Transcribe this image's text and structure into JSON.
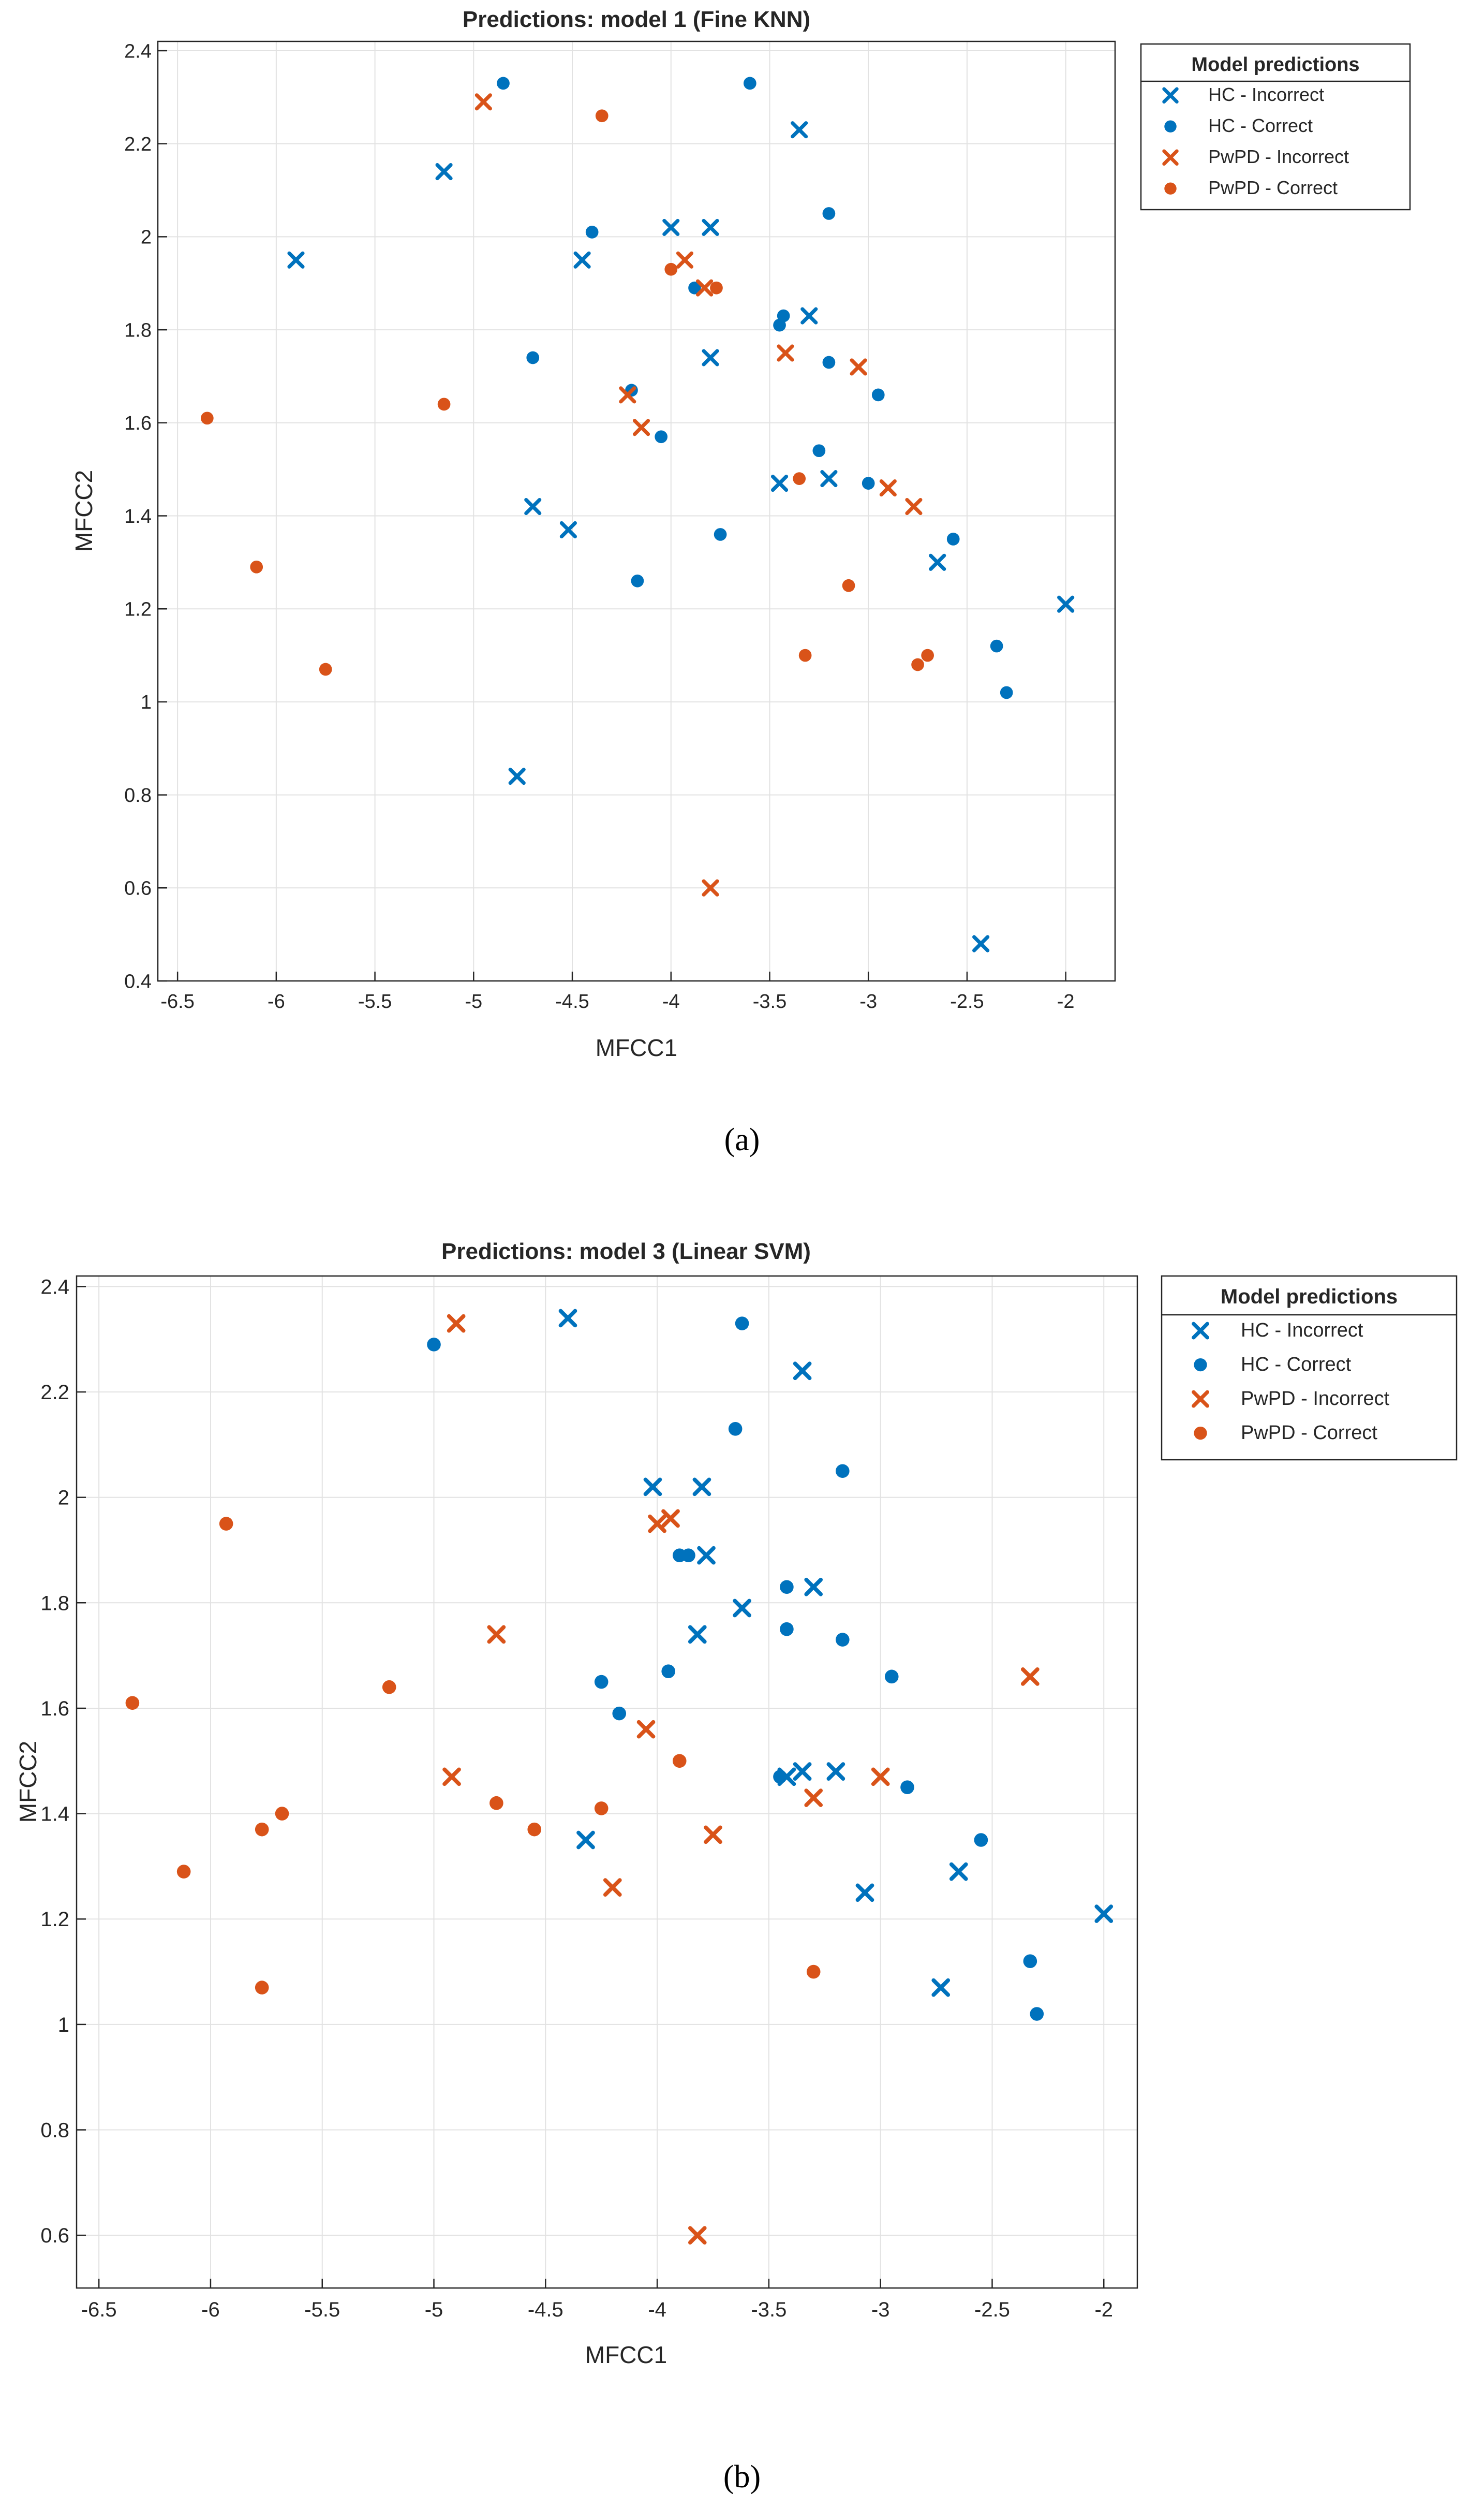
{
  "colors": {
    "hc": "#0072BD",
    "pwpd": "#D95319",
    "grid": "#e2e2e2",
    "axis": "#262626",
    "text": "#262626"
  },
  "chart_data": [
    {
      "type": "scatter",
      "title": "Predictions: model 1 (Fine KNN)",
      "xlabel": "MFCC1",
      "ylabel": "MFCC2",
      "caption": "(a)",
      "xlim": [
        -6.6,
        -1.75
      ],
      "ylim": [
        0.4,
        2.42
      ],
      "xticks": [
        -6.5,
        -6,
        -5.5,
        -5,
        -4.5,
        -4,
        -3.5,
        -3,
        -2.5,
        -2
      ],
      "xtick_labels": [
        "-6.5",
        "-6",
        "-5.5",
        "-5",
        "-4.5",
        "-4",
        "-3.5",
        "-3",
        "-2.5",
        "-2"
      ],
      "yticks": [
        0.4,
        0.6,
        0.8,
        1,
        1.2,
        1.4,
        1.6,
        1.8,
        2,
        2.2,
        2.4
      ],
      "ytick_labels": [
        "0.4",
        "0.6",
        "0.8",
        "1",
        "1.2",
        "1.4",
        "1.6",
        "1.8",
        "2",
        "2.2",
        "2.4"
      ],
      "grid": true,
      "legend": {
        "title": "Model predictions",
        "placement": "outside-top-right",
        "entries": [
          "HC - Incorrect",
          "HC - Correct",
          "PwPD - Incorrect",
          "PwPD - Correct"
        ]
      },
      "series": [
        {
          "name": "HC - Incorrect",
          "marker": "x",
          "color": "#0072BD",
          "points": [
            [
              -5.9,
              1.95
            ],
            [
              -5.15,
              2.14
            ],
            [
              -4.45,
              1.95
            ],
            [
              -4.0,
              2.02
            ],
            [
              -3.8,
              2.02
            ],
            [
              -3.35,
              2.23
            ],
            [
              -3.8,
              1.74
            ],
            [
              -3.3,
              1.83
            ],
            [
              -3.45,
              1.47
            ],
            [
              -3.2,
              1.48
            ],
            [
              -4.7,
              1.42
            ],
            [
              -4.52,
              1.37
            ],
            [
              -2.65,
              1.3
            ],
            [
              -2.0,
              1.21
            ],
            [
              -4.78,
              0.84
            ],
            [
              -2.43,
              0.48
            ]
          ]
        },
        {
          "name": "HC - Correct",
          "marker": "dot",
          "color": "#0072BD",
          "points": [
            [
              -4.85,
              2.33
            ],
            [
              -3.6,
              2.33
            ],
            [
              -4.4,
              2.01
            ],
            [
              -3.2,
              2.05
            ],
            [
              -3.88,
              1.89
            ],
            [
              -3.43,
              1.83
            ],
            [
              -3.45,
              1.81
            ],
            [
              -4.7,
              1.74
            ],
            [
              -3.2,
              1.73
            ],
            [
              -4.2,
              1.67
            ],
            [
              -2.95,
              1.66
            ],
            [
              -4.05,
              1.57
            ],
            [
              -3.25,
              1.54
            ],
            [
              -3.0,
              1.47
            ],
            [
              -2.57,
              1.35
            ],
            [
              -3.75,
              1.36
            ],
            [
              -4.17,
              1.26
            ],
            [
              -2.35,
              1.12
            ],
            [
              -2.3,
              1.02
            ]
          ]
        },
        {
          "name": "PwPD - Incorrect",
          "marker": "x",
          "color": "#D95319",
          "points": [
            [
              -4.95,
              2.29
            ],
            [
              -3.93,
              1.95
            ],
            [
              -3.83,
              1.89
            ],
            [
              -3.42,
              1.75
            ],
            [
              -3.05,
              1.72
            ],
            [
              -4.22,
              1.66
            ],
            [
              -4.15,
              1.59
            ],
            [
              -2.9,
              1.46
            ],
            [
              -2.77,
              1.42
            ],
            [
              -3.8,
              0.6
            ]
          ]
        },
        {
          "name": "PwPD - Correct",
          "marker": "dot",
          "color": "#D95319",
          "points": [
            [
              -4.35,
              2.26
            ],
            [
              -4.0,
              1.93
            ],
            [
              -3.77,
              1.89
            ],
            [
              -6.35,
              1.61
            ],
            [
              -5.15,
              1.64
            ],
            [
              -3.35,
              1.48
            ],
            [
              -6.1,
              1.29
            ],
            [
              -3.1,
              1.25
            ],
            [
              -5.75,
              1.07
            ],
            [
              -3.32,
              1.1
            ],
            [
              -2.7,
              1.1
            ],
            [
              -2.75,
              1.08
            ]
          ]
        }
      ]
    },
    {
      "type": "scatter",
      "title": "Predictions: model 3 (Linear SVM)",
      "xlabel": "MFCC1",
      "ylabel": "MFCC2",
      "caption": "(b)",
      "xlim": [
        -6.6,
        -1.85
      ],
      "ylim": [
        0.5,
        2.42
      ],
      "xticks": [
        -6.5,
        -6,
        -5.5,
        -5,
        -4.5,
        -4,
        -3.5,
        -3,
        -2.5,
        -2
      ],
      "xtick_labels": [
        "-6.5",
        "-6",
        "-5.5",
        "-5",
        "-4.5",
        "-4",
        "-3.5",
        "-3",
        "-2.5",
        "-2"
      ],
      "yticks": [
        0.6,
        0.8,
        1,
        1.2,
        1.4,
        1.6,
        1.8,
        2,
        2.2,
        2.4
      ],
      "ytick_labels": [
        "0.6",
        "0.8",
        "1",
        "1.2",
        "1.4",
        "1.6",
        "1.8",
        "2",
        "2.2",
        "2.4"
      ],
      "grid": true,
      "legend": {
        "title": "Model predictions",
        "placement": "outside-top-right",
        "entries": [
          "HC - Incorrect",
          "HC - Correct",
          "PwPD - Incorrect",
          "PwPD - Correct"
        ]
      },
      "series": [
        {
          "name": "HC - Incorrect",
          "marker": "x",
          "color": "#0072BD",
          "points": [
            [
              -4.4,
              2.34
            ],
            [
              -3.35,
              2.24
            ],
            [
              -4.02,
              2.02
            ],
            [
              -3.8,
              2.02
            ],
            [
              -3.78,
              1.89
            ],
            [
              -3.3,
              1.83
            ],
            [
              -3.62,
              1.79
            ],
            [
              -3.82,
              1.74
            ],
            [
              -3.42,
              1.47
            ],
            [
              -3.35,
              1.48
            ],
            [
              -3.2,
              1.48
            ],
            [
              -4.32,
              1.35
            ],
            [
              -3.07,
              1.25
            ],
            [
              -2.65,
              1.29
            ],
            [
              -2.0,
              1.21
            ],
            [
              -2.73,
              1.07
            ]
          ]
        },
        {
          "name": "HC - Correct",
          "marker": "dot",
          "color": "#0072BD",
          "points": [
            [
              -5.0,
              2.29
            ],
            [
              -3.62,
              2.33
            ],
            [
              -3.65,
              2.13
            ],
            [
              -3.17,
              2.05
            ],
            [
              -3.9,
              1.89
            ],
            [
              -3.86,
              1.89
            ],
            [
              -3.42,
              1.83
            ],
            [
              -3.42,
              1.75
            ],
            [
              -3.17,
              1.73
            ],
            [
              -3.95,
              1.67
            ],
            [
              -2.95,
              1.66
            ],
            [
              -4.25,
              1.65
            ],
            [
              -4.17,
              1.59
            ],
            [
              -3.45,
              1.47
            ],
            [
              -2.88,
              1.45
            ],
            [
              -2.55,
              1.35
            ],
            [
              -2.33,
              1.12
            ],
            [
              -2.3,
              1.02
            ]
          ]
        },
        {
          "name": "PwPD - Incorrect",
          "marker": "x",
          "color": "#D95319",
          "points": [
            [
              -4.9,
              2.33
            ],
            [
              -4.0,
              1.95
            ],
            [
              -3.94,
              1.96
            ],
            [
              -4.72,
              1.74
            ],
            [
              -2.33,
              1.66
            ],
            [
              -4.05,
              1.56
            ],
            [
              -4.92,
              1.47
            ],
            [
              -3.0,
              1.47
            ],
            [
              -3.75,
              1.36
            ],
            [
              -3.3,
              1.43
            ],
            [
              -4.2,
              1.26
            ],
            [
              -3.82,
              0.6
            ]
          ]
        },
        {
          "name": "PwPD - Correct",
          "marker": "dot",
          "color": "#D95319",
          "points": [
            [
              -5.93,
              1.95
            ],
            [
              -6.35,
              1.61
            ],
            [
              -5.2,
              1.64
            ],
            [
              -3.9,
              1.5
            ],
            [
              -5.68,
              1.4
            ],
            [
              -5.77,
              1.37
            ],
            [
              -4.72,
              1.42
            ],
            [
              -4.25,
              1.41
            ],
            [
              -4.55,
              1.37
            ],
            [
              -6.12,
              1.29
            ],
            [
              -5.77,
              1.07
            ],
            [
              -3.3,
              1.1
            ]
          ]
        }
      ]
    }
  ]
}
